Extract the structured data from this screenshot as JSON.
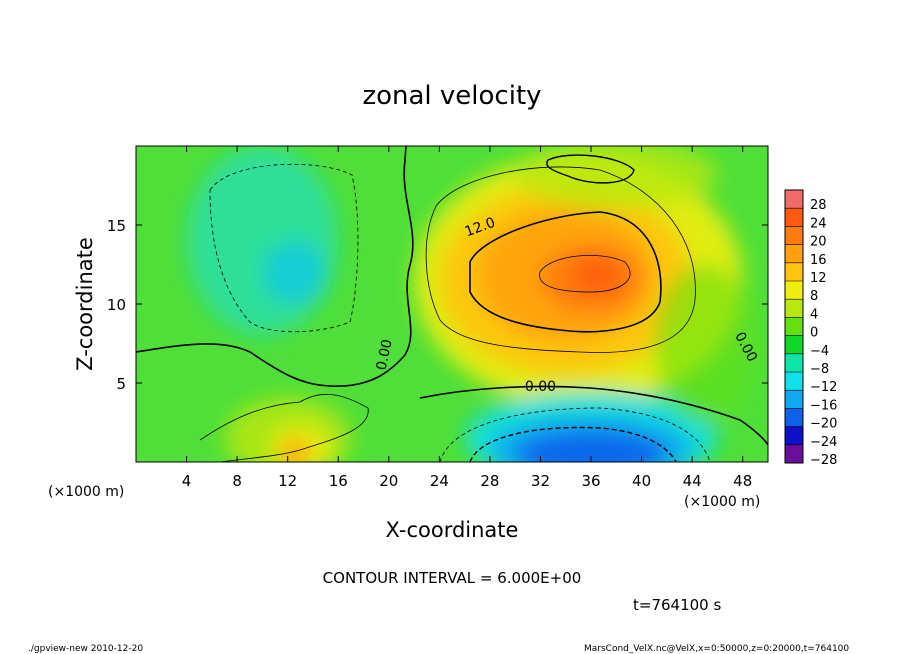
{
  "chart_data": {
    "type": "heatmap",
    "title": "zonal velocity",
    "xlabel": "X-coordinate",
    "ylabel": "Z-coordinate",
    "x_unit_note": "(×1000 m)",
    "y_unit_note": "(×1000 m)",
    "xlim": [
      0,
      50
    ],
    "ylim": [
      0,
      20
    ],
    "x_ticks": [
      4,
      8,
      12,
      16,
      20,
      24,
      28,
      32,
      36,
      40,
      44,
      48
    ],
    "y_ticks": [
      5,
      10,
      15
    ],
    "colorbar": {
      "levels": [
        28,
        24,
        20,
        16,
        12,
        8,
        4,
        0,
        -4,
        -8,
        -12,
        -16,
        -20,
        -24,
        -28
      ],
      "labels": [
        "28",
        "24",
        "20",
        "16",
        "12",
        "8",
        "4",
        "0",
        "−4",
        "−8",
        "−12",
        "−16",
        "−20",
        "−24",
        "−28"
      ],
      "colors": [
        "#f06a6a",
        "#ff5a10",
        "#ff7a10",
        "#ffa010",
        "#ffc410",
        "#f0ee10",
        "#b8e810",
        "#64e010",
        "#10d828",
        "#10e4a8",
        "#10e0e8",
        "#10a8f0",
        "#1060ea",
        "#1010c8",
        "#6a1098"
      ]
    },
    "contour_labels": [
      {
        "text": "12.0",
        "x": 27.2,
        "y": 14.9,
        "rotate": -20
      },
      {
        "text": "0.00",
        "x": 32.0,
        "y": 4.8,
        "rotate": 0
      },
      {
        "text": "0.00",
        "x": 19.6,
        "y": 6.8,
        "rotate": -78
      },
      {
        "text": "0.00",
        "x": 48.3,
        "y": 7.3,
        "rotate": 62
      }
    ],
    "blobs": [
      {
        "x": 10,
        "y": 14,
        "rx": 6,
        "ry": 6,
        "color": "#10e0e8",
        "opacity": 0.55
      },
      {
        "x": 12.5,
        "y": 12,
        "rx": 2.5,
        "ry": 2,
        "color": "#10c8f0",
        "opacity": 0.7
      },
      {
        "x": 35,
        "y": 11.5,
        "rx": 13,
        "ry": 8,
        "color": "#f0ee10",
        "opacity": 0.9
      },
      {
        "x": 34,
        "y": 11.5,
        "rx": 10,
        "ry": 6,
        "color": "#ffc410",
        "opacity": 0.9
      },
      {
        "x": 34,
        "y": 11.8,
        "rx": 7,
        "ry": 4.2,
        "color": "#ffa010",
        "opacity": 0.9
      },
      {
        "x": 36,
        "y": 11.6,
        "rx": 4,
        "ry": 2.2,
        "color": "#ff7a10",
        "opacity": 0.9
      },
      {
        "x": 36.5,
        "y": 11.8,
        "rx": 2,
        "ry": 1.2,
        "color": "#ff5a10",
        "opacity": 0.8
      },
      {
        "x": 36,
        "y": 1.5,
        "rx": 10,
        "ry": 3,
        "color": "#10e0e8",
        "opacity": 0.9
      },
      {
        "x": 36,
        "y": 0.8,
        "rx": 8,
        "ry": 2.2,
        "color": "#10a8f0",
        "opacity": 0.9
      },
      {
        "x": 36,
        "y": 0.5,
        "rx": 6,
        "ry": 1.5,
        "color": "#1060ea",
        "opacity": 0.9
      },
      {
        "x": 12,
        "y": 1.5,
        "rx": 5,
        "ry": 2.6,
        "color": "#b8e810",
        "opacity": 0.85
      },
      {
        "x": 13,
        "y": 0.9,
        "rx": 2.4,
        "ry": 1.4,
        "color": "#f0ee10",
        "opacity": 0.9
      },
      {
        "x": 12.6,
        "y": 0.6,
        "rx": 1.2,
        "ry": 0.9,
        "color": "#ffa010",
        "opacity": 0.9
      },
      {
        "x": 38,
        "y": 18.2,
        "rx": 8,
        "ry": 2.2,
        "color": "#b8e810",
        "opacity": 0.8
      },
      {
        "x": 45,
        "y": 7.5,
        "rx": 4,
        "ry": 5,
        "color": "#64e010",
        "opacity": 0.6
      }
    ]
  },
  "annotations": {
    "contour_interval": "CONTOUR INTERVAL = 6.000E+00",
    "time": "t=764100 s",
    "footer_left": "./gpview-new   2010-12-20",
    "footer_right": "MarsCond_VelX.nc@VelX,x=0:50000,z=0:20000,t=764100"
  }
}
